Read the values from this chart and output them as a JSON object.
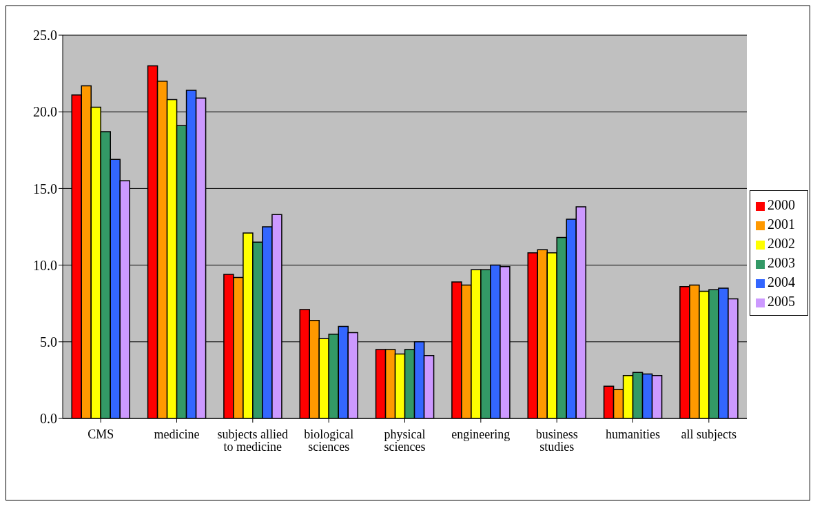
{
  "chart_data": {
    "type": "bar",
    "categories": [
      "CMS",
      "medicine",
      "subjects allied to medicine",
      "biological sciences",
      "physical sciences",
      "engineering",
      "business studies",
      "humanities",
      "all subjects"
    ],
    "series": [
      {
        "name": "2000",
        "color": "#ff0000",
        "values": [
          21.1,
          23.0,
          9.4,
          7.1,
          4.5,
          8.9,
          10.8,
          2.1,
          8.6
        ]
      },
      {
        "name": "2001",
        "color": "#ff9900",
        "values": [
          21.7,
          22.0,
          9.2,
          6.4,
          4.5,
          8.7,
          11.0,
          1.9,
          8.7
        ]
      },
      {
        "name": "2002",
        "color": "#ffff00",
        "values": [
          20.3,
          20.8,
          12.1,
          5.2,
          4.2,
          9.7,
          10.8,
          2.8,
          8.3
        ]
      },
      {
        "name": "2003",
        "color": "#339966",
        "values": [
          18.7,
          19.1,
          11.5,
          5.5,
          4.5,
          9.7,
          11.8,
          3.0,
          8.4
        ]
      },
      {
        "name": "2004",
        "color": "#3366ff",
        "values": [
          16.9,
          21.4,
          12.5,
          6.0,
          5.0,
          10.0,
          13.0,
          2.9,
          8.5
        ]
      },
      {
        "name": "2005",
        "color": "#cc99ff",
        "values": [
          15.5,
          20.9,
          13.3,
          5.6,
          4.1,
          9.9,
          13.8,
          2.8,
          7.8
        ]
      }
    ],
    "ylim": [
      0,
      25
    ],
    "yticks": [
      {
        "value": 0,
        "label": "0.0"
      },
      {
        "value": 5,
        "label": "5.0"
      },
      {
        "value": 10,
        "label": "10.0"
      },
      {
        "value": 15,
        "label": "15.0"
      },
      {
        "value": 20,
        "label": "20.0"
      },
      {
        "value": 25,
        "label": "25.0"
      }
    ],
    "grid": "y",
    "legend": "right"
  }
}
